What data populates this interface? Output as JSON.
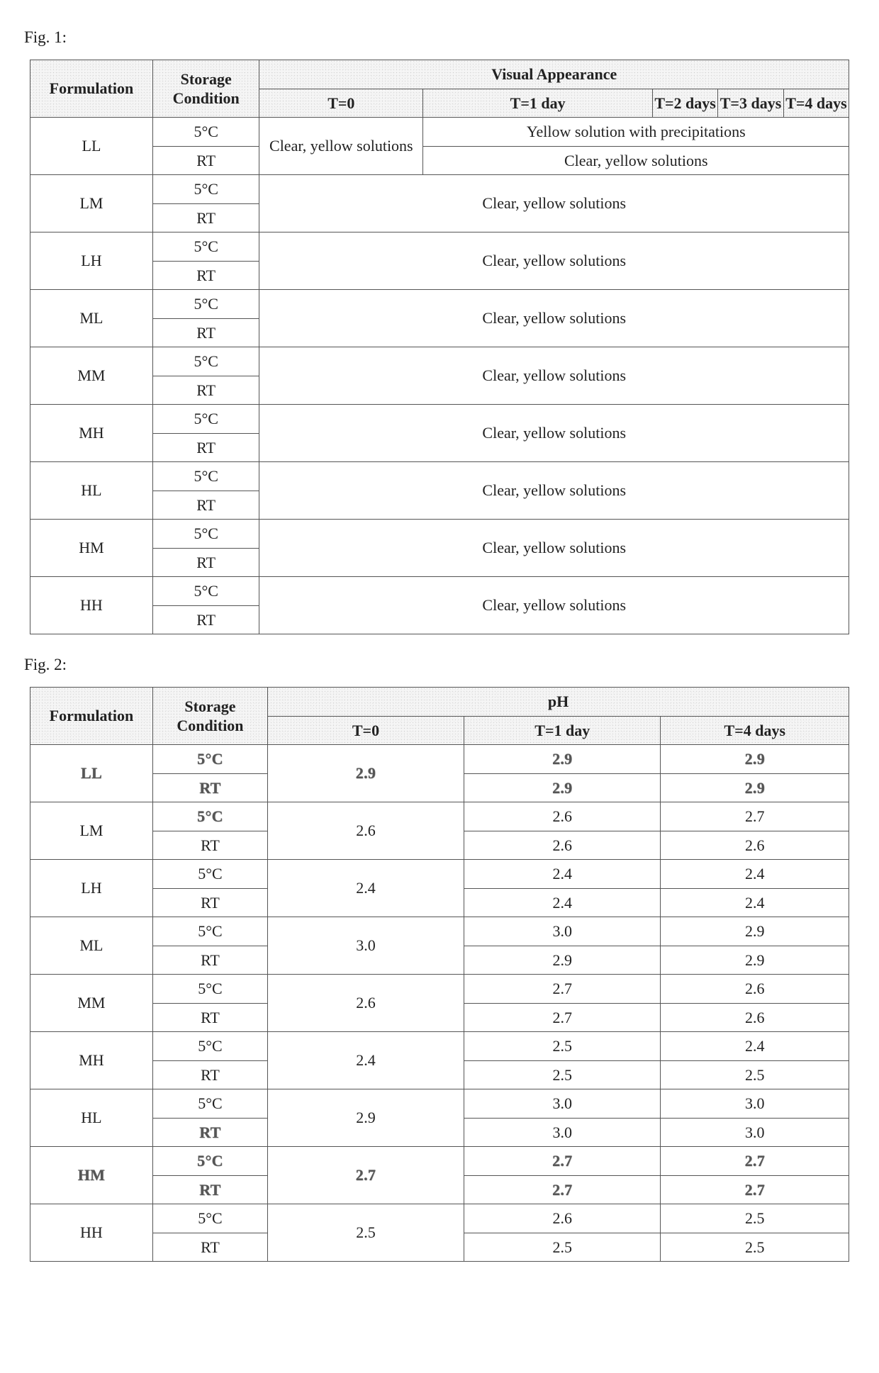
{
  "fig1": {
    "label": "Fig. 1:",
    "headers": {
      "formulation": "Formulation",
      "storage": "Storage Condition",
      "group": "Visual Appearance",
      "t0": "T=0",
      "t1": "T=1 day",
      "t2": "T=2 days",
      "t3": "T=3 days",
      "t4": "T=4 days"
    },
    "ll": {
      "name": "LL",
      "cond1": "5°C",
      "cond2": "RT",
      "t0": "Clear, yellow solutions",
      "row1_rest": "Yellow solution with precipitations",
      "row2_rest": "Clear, yellow solutions"
    },
    "simple": [
      {
        "name": "LM",
        "cond1": "5°C",
        "cond2": "RT",
        "val": "Clear, yellow solutions"
      },
      {
        "name": "LH",
        "cond1": "5°C",
        "cond2": "RT",
        "val": "Clear, yellow solutions"
      },
      {
        "name": "ML",
        "cond1": "5°C",
        "cond2": "RT",
        "val": "Clear, yellow solutions"
      },
      {
        "name": "MM",
        "cond1": "5°C",
        "cond2": "RT",
        "val": "Clear, yellow solutions"
      },
      {
        "name": "MH",
        "cond1": "5°C",
        "cond2": "RT",
        "val": "Clear, yellow solutions"
      },
      {
        "name": "HL",
        "cond1": "5°C",
        "cond2": "RT",
        "val": "Clear, yellow solutions"
      },
      {
        "name": "HM",
        "cond1": "5°C",
        "cond2": "RT",
        "val": "Clear, yellow solutions"
      },
      {
        "name": "HH",
        "cond1": "5°C",
        "cond2": "RT",
        "val": "Clear, yellow solutions"
      }
    ]
  },
  "fig2": {
    "label": "Fig. 2:",
    "headers": {
      "formulation": "Formulation",
      "storage": "Storage Condition",
      "group": "pH",
      "t0": "T=0",
      "t1": "T=1 day",
      "t4": "T=4 days"
    },
    "rows": [
      {
        "name": "LL",
        "grain": true,
        "cond1": "5°C",
        "cond2": "RT",
        "c1g": true,
        "c2g": true,
        "t0": "2.9",
        "r1t1": "2.9",
        "r1t4": "2.9",
        "r2t1": "2.9",
        "r2t4": "2.9",
        "valsGrain": true
      },
      {
        "name": "LM",
        "grain": false,
        "cond1": "5°C",
        "cond2": "RT",
        "c1g": true,
        "c2g": false,
        "t0": "2.6",
        "r1t1": "2.6",
        "r1t4": "2.7",
        "r2t1": "2.6",
        "r2t4": "2.6",
        "valsGrain": false
      },
      {
        "name": "LH",
        "grain": false,
        "cond1": "5°C",
        "cond2": "RT",
        "c1g": false,
        "c2g": false,
        "t0": "2.4",
        "r1t1": "2.4",
        "r1t4": "2.4",
        "r2t1": "2.4",
        "r2t4": "2.4",
        "valsGrain": false
      },
      {
        "name": "ML",
        "grain": false,
        "cond1": "5°C",
        "cond2": "RT",
        "c1g": false,
        "c2g": false,
        "t0": "3.0",
        "r1t1": "3.0",
        "r1t4": "2.9",
        "r2t1": "2.9",
        "r2t4": "2.9",
        "valsGrain": false
      },
      {
        "name": "MM",
        "grain": false,
        "cond1": "5°C",
        "cond2": "RT",
        "c1g": false,
        "c2g": false,
        "t0": "2.6",
        "r1t1": "2.7",
        "r1t4": "2.6",
        "r2t1": "2.7",
        "r2t4": "2.6",
        "valsGrain": false
      },
      {
        "name": "MH",
        "grain": false,
        "cond1": "5°C",
        "cond2": "RT",
        "c1g": false,
        "c2g": false,
        "t0": "2.4",
        "r1t1": "2.5",
        "r1t4": "2.4",
        "r2t1": "2.5",
        "r2t4": "2.5",
        "valsGrain": false
      },
      {
        "name": "HL",
        "grain": false,
        "cond1": "5°C",
        "cond2": "RT",
        "c1g": false,
        "c2g": true,
        "t0": "2.9",
        "r1t1": "3.0",
        "r1t4": "3.0",
        "r2t1": "3.0",
        "r2t4": "3.0",
        "valsGrain": false
      },
      {
        "name": "HM",
        "grain": true,
        "cond1": "5°C",
        "cond2": "RT",
        "c1g": true,
        "c2g": true,
        "t0": "2.7",
        "r1t1": "2.7",
        "r1t4": "2.7",
        "r2t1": "2.7",
        "r2t4": "2.7",
        "valsGrain": true
      },
      {
        "name": "HH",
        "grain": false,
        "cond1": "5°C",
        "cond2": "RT",
        "c1g": false,
        "c2g": false,
        "t0": "2.5",
        "r1t1": "2.6",
        "r1t4": "2.5",
        "r2t1": "2.5",
        "r2t4": "2.5",
        "valsGrain": false
      }
    ]
  },
  "style": {
    "border_color": "#555555",
    "header_bg": "#f5f5f5",
    "text_color": "#222222",
    "fontsize_pt": 22,
    "font_family": "Times New Roman",
    "page_bg": "#ffffff"
  }
}
